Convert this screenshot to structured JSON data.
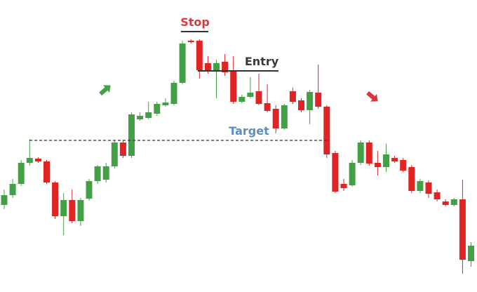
{
  "chart_data": {
    "type": "candlestick",
    "up_color": "#43a047",
    "down_color": "#e02424",
    "ylim": [
      0,
      416
    ],
    "open": [
      124,
      138,
      154,
      184,
      190,
      186,
      156,
      108,
      131,
      101,
      133,
      158,
      160,
      179,
      213,
      194,
      246,
      248,
      254,
      266,
      268,
      298,
      358,
      358,
      326,
      316,
      328,
      316,
      271,
      278,
      286,
      269,
      261,
      233,
      286,
      273,
      259,
      284,
      264,
      198,
      154,
      152,
      184,
      213,
      184,
      178,
      191,
      188,
      178,
      144,
      156,
      142,
      129,
      124,
      132,
      44
    ],
    "high": [
      146,
      161,
      188,
      218,
      192,
      188,
      158,
      141,
      146,
      134,
      161,
      181,
      184,
      216,
      216,
      256,
      256,
      271,
      271,
      276,
      301,
      358,
      360,
      360,
      336,
      331,
      339,
      336,
      281,
      306,
      311,
      296,
      266,
      268,
      291,
      276,
      288,
      324,
      266,
      201,
      161,
      188,
      216,
      216,
      201,
      211,
      194,
      191,
      181,
      161,
      159,
      146,
      132,
      134,
      160,
      71
    ],
    "low": [
      118,
      134,
      151,
      180,
      184,
      154,
      104,
      81,
      98,
      94,
      130,
      154,
      156,
      176,
      191,
      191,
      244,
      246,
      251,
      264,
      266,
      296,
      354,
      304,
      311,
      276,
      308,
      268,
      269,
      276,
      266,
      256,
      226,
      231,
      268,
      256,
      239,
      261,
      191,
      141,
      144,
      150,
      181,
      180,
      166,
      171,
      184,
      171,
      141,
      141,
      134,
      129,
      122,
      122,
      26,
      36
    ],
    "close": [
      138,
      154,
      184,
      191,
      186,
      156,
      108,
      131,
      101,
      131,
      158,
      179,
      179,
      213,
      194,
      253,
      251,
      256,
      268,
      270,
      298,
      354,
      356,
      316,
      316,
      326,
      313,
      271,
      278,
      284,
      268,
      258,
      233,
      266,
      271,
      259,
      285,
      264,
      196,
      143,
      148,
      184,
      213,
      183,
      178,
      196,
      186,
      173,
      144,
      158,
      140,
      132,
      124,
      132,
      46,
      66
    ],
    "annotations": [
      {
        "text": "Stop",
        "value": 371,
        "color": "#d7383d"
      },
      {
        "text": "Entry",
        "value": 315,
        "color": "#3a3a3a"
      },
      {
        "text": "Target",
        "value": 216,
        "color": "#5b8dc2"
      }
    ]
  }
}
